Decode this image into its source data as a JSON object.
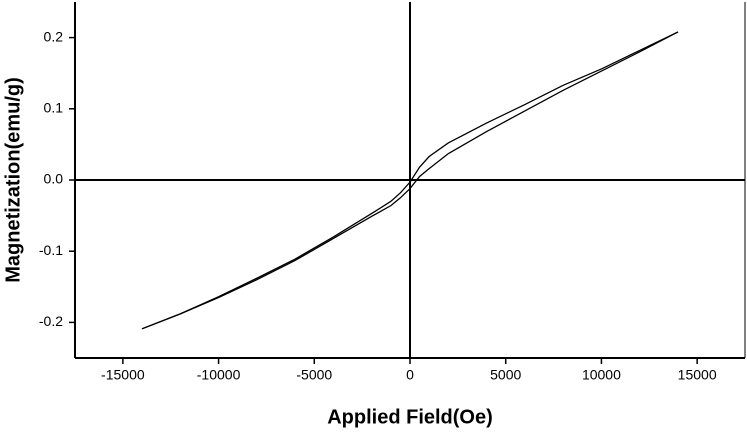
{
  "chart_data": {
    "type": "line",
    "xlabel": "Applied Field(Oe)",
    "ylabel": "Magnetization(emu/g)",
    "x": [
      -14000,
      -12000,
      -10000,
      -8000,
      -6000,
      -4000,
      -2000,
      -1000,
      -500,
      0,
      500,
      1000,
      2000,
      4000,
      6000,
      8000,
      10000,
      12000,
      14000
    ],
    "series": [
      {
        "color": "#000000",
        "values": [
          -0.209,
          -0.188,
          -0.164,
          -0.138,
          -0.111,
          -0.08,
          -0.047,
          -0.03,
          -0.018,
          -0.003,
          0.018,
          0.033,
          0.052,
          0.08,
          0.106,
          0.133,
          0.156,
          0.182,
          0.208
        ]
      },
      {
        "color": "#000000",
        "values": [
          -0.209,
          -0.188,
          -0.165,
          -0.14,
          -0.113,
          -0.082,
          -0.051,
          -0.036,
          -0.025,
          -0.012,
          0.005,
          0.016,
          0.037,
          0.068,
          0.097,
          0.126,
          0.153,
          0.18,
          0.208
        ]
      }
    ],
    "xlim": [
      -17500,
      17500
    ],
    "ylim": [
      -0.25,
      0.25
    ],
    "xticks": [
      -15000,
      -10000,
      -5000,
      0,
      5000,
      10000,
      15000
    ],
    "yticks": [
      -0.2,
      -0.1,
      {
        "value": 0,
        "label": "0.0"
      },
      0.1,
      0.2
    ],
    "zero_lines": true
  }
}
